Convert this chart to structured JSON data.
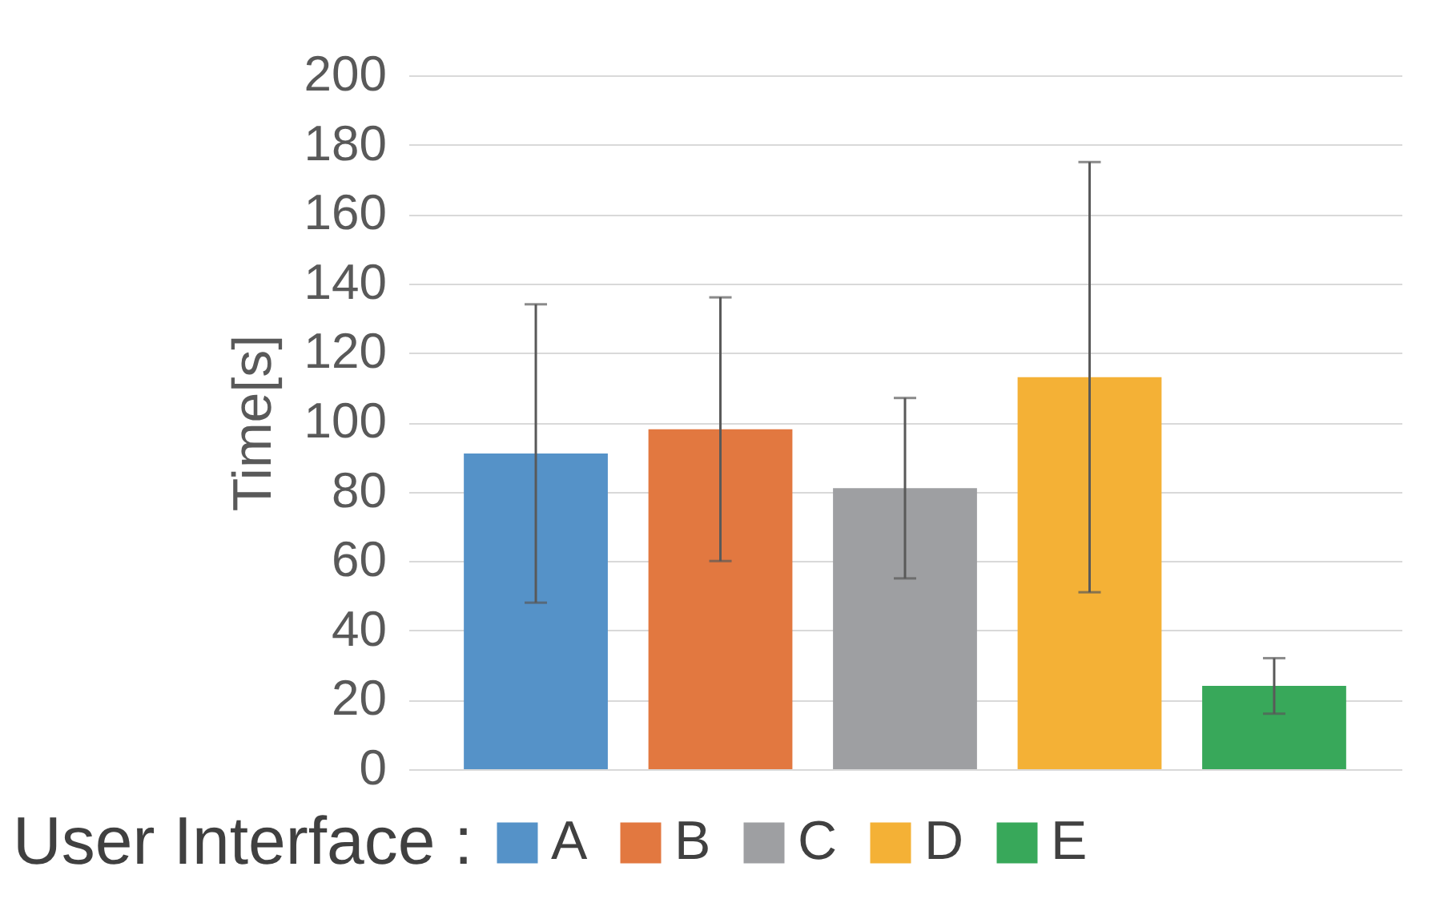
{
  "chart_data": {
    "type": "bar",
    "ylabel": "Time[s]",
    "legend_title": "User Interface :",
    "categories": [
      null
    ],
    "series": [
      {
        "name": "A",
        "color": "#5592c8",
        "values": [
          91
        ],
        "errors": [
          43
        ]
      },
      {
        "name": "B",
        "color": "#e27840",
        "values": [
          98
        ],
        "errors": [
          38
        ]
      },
      {
        "name": "C",
        "color": "#9e9fa2",
        "values": [
          81
        ],
        "errors": [
          26
        ]
      },
      {
        "name": "D",
        "color": "#f4b136",
        "values": [
          113
        ],
        "errors": [
          62
        ]
      },
      {
        "name": "E",
        "color": "#38a85a",
        "values": [
          24
        ],
        "errors": [
          8
        ]
      }
    ],
    "ylim": [
      0,
      200
    ],
    "yticks": [
      0,
      20,
      40,
      60,
      80,
      100,
      120,
      140,
      160,
      180,
      200
    ],
    "grid": "y",
    "legend": "bottom",
    "tick_labels": "y"
  }
}
